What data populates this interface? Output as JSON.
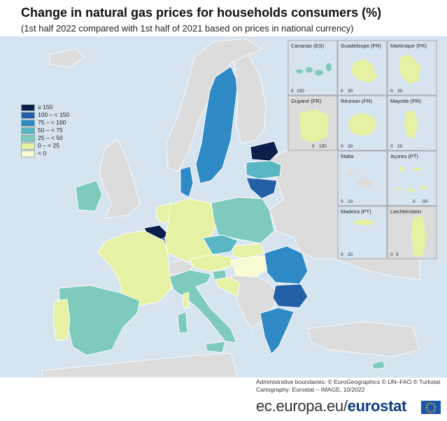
{
  "title": "Change in natural gas prices for households consumers (%)",
  "subtitle": "(1st half 2022 compared with 1st half of 2021 based on prices in national currency)",
  "legend": {
    "items": [
      {
        "label": "≥ 150",
        "color": "#0b1f4d"
      },
      {
        "label": "100 – < 150",
        "color": "#2460a7"
      },
      {
        "label": "75 – < 100",
        "color": "#2f89c5"
      },
      {
        "label": "50 – < 75",
        "color": "#59b7c4"
      },
      {
        "label": "25 – < 50",
        "color": "#7ecbbd"
      },
      {
        "label": "0 – < 25",
        "color": "#e6f1a3"
      },
      {
        "label": "< 0",
        "color": "#fbfbd2"
      }
    ]
  },
  "colors": {
    "sea": "#d6e4f0",
    "non_eu_land": "#dcdcdc",
    "border": "#ffffff"
  },
  "insets": [
    {
      "name": "Canarias (ES)",
      "scale": [
        "0",
        "100"
      ]
    },
    {
      "name": "Guadeloupe (FR)",
      "scale": [
        "0",
        "20"
      ]
    },
    {
      "name": "Martinique (FR)",
      "scale": [
        "0",
        "20"
      ]
    },
    {
      "name": "Guyane (FR)",
      "scale": [
        "0",
        "100"
      ]
    },
    {
      "name": "Réunion (FR)",
      "scale": [
        "0",
        "20"
      ]
    },
    {
      "name": "Mayotte (FR)",
      "scale": [
        "0",
        "10"
      ]
    },
    {
      "name": "Malta",
      "scale": [
        "0",
        "10"
      ]
    },
    {
      "name": "Açores (PT)",
      "scale": [
        "0",
        "50"
      ]
    },
    {
      "name": "Madeira (PT)",
      "scale": [
        "0",
        "20"
      ]
    },
    {
      "name": "Liechtenstein",
      "scale": [
        "0",
        "5"
      ]
    }
  ],
  "credits": {
    "line1": "Administrative boundaries: © EuroGeographics © UN–FAO © Turkstat",
    "line2": "Cartography: Eurostat – IMAGE, 10/2022"
  },
  "footer": {
    "domain": "ec.europa.eu/",
    "brand": "eurostat"
  }
}
